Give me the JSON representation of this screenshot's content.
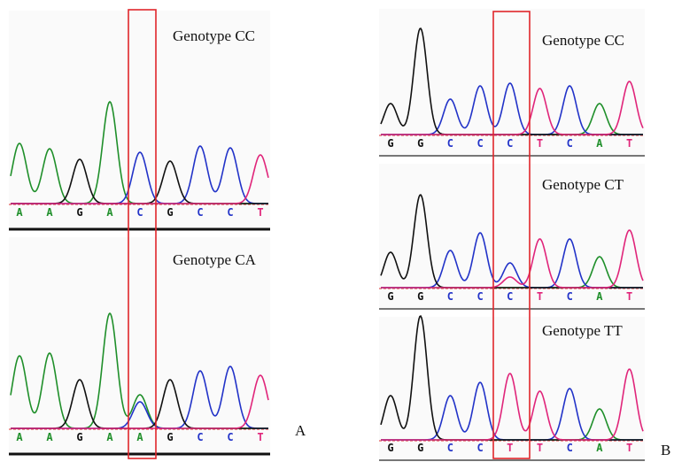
{
  "panels": [
    {
      "label": "A",
      "traces": [
        {
          "genotype": "Genotype CC",
          "bases": [
            "A",
            "A",
            "G",
            "A",
            "C",
            "G",
            "C",
            "C",
            "T"
          ]
        },
        {
          "genotype": "Genotype CA",
          "bases": [
            "A",
            "A",
            "G",
            "A",
            "A",
            "G",
            "C",
            "C",
            "T"
          ]
        }
      ]
    },
    {
      "label": "B",
      "traces": [
        {
          "genotype": "Genotype CC",
          "bases": [
            "G",
            "G",
            "C",
            "C",
            "C",
            "T",
            "C",
            "A",
            "T"
          ]
        },
        {
          "genotype": "Genotype CT",
          "bases": [
            "G",
            "G",
            "C",
            "C",
            "C",
            "T",
            "C",
            "A",
            "T"
          ]
        },
        {
          "genotype": "Genotype TT",
          "bases": [
            "G",
            "G",
            "C",
            "C",
            "T",
            "T",
            "C",
            "A",
            "T"
          ]
        }
      ]
    }
  ]
}
